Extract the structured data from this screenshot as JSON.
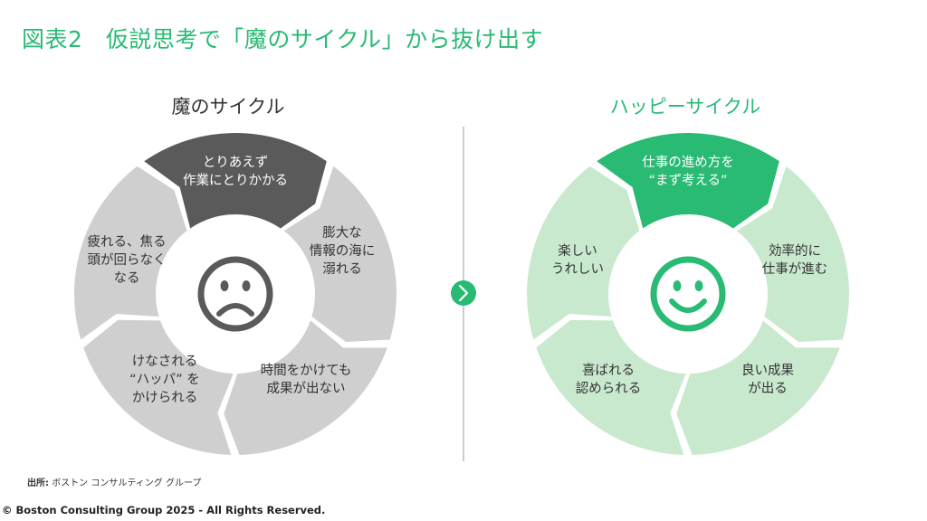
{
  "title": "図表2　仮説思考で「魔のサイクル」から抜け出す",
  "colors": {
    "accent": "#29ba74",
    "dark_segment": "#5a5a5a",
    "grey_segment": "#cfcfcf",
    "green_segment": "#c9e9cf",
    "divider": "#999999"
  },
  "left_cycle": {
    "heading": "魔のサイクル",
    "center_icon": "sad-face-icon",
    "segments": [
      {
        "lines": [
          "とりあえず",
          "作業にとりかかる"
        ]
      },
      {
        "lines": [
          "膨大な",
          "情報の海に",
          "溺れる"
        ]
      },
      {
        "lines": [
          "時間をかけても",
          "成果が出ない"
        ]
      },
      {
        "lines": [
          "けなされる",
          "“ハッパ” を",
          "かけられる"
        ]
      },
      {
        "lines": [
          "疲れる、焦る",
          "頭が回らなく",
          "なる"
        ]
      }
    ]
  },
  "right_cycle": {
    "heading": "ハッピーサイクル",
    "center_icon": "happy-face-icon",
    "segments": [
      {
        "lines": [
          "仕事の進め方を",
          "“まず考える”"
        ]
      },
      {
        "lines": [
          "効率的に",
          "仕事が進む"
        ]
      },
      {
        "lines": [
          "良い成果",
          "が出る"
        ]
      },
      {
        "lines": [
          "喜ばれる",
          "認められる"
        ]
      },
      {
        "lines": [
          "楽しい",
          "うれしい"
        ]
      }
    ]
  },
  "arrow_icon": "chevron-right-icon",
  "source": {
    "label": "出所:",
    "text": "ボストン コンサルティング グループ"
  },
  "copyright": "© Boston Consulting Group 2025 - All Rights Reserved."
}
